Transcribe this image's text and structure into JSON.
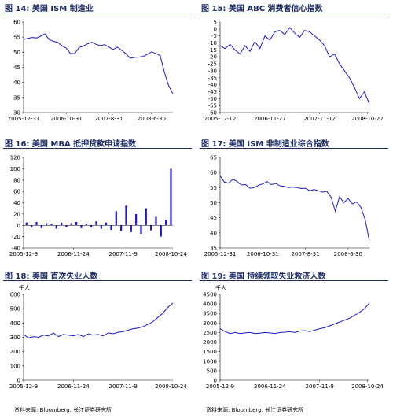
{
  "charts": [
    {
      "title_num": "图 14:",
      "title_text": "美国 ISM 制造业",
      "unit": "",
      "chart_data": {
        "type": "line",
        "x_ticks": [
          "2005-12-31",
          "2006-10-31",
          "2007-8-31",
          "2008-6-30"
        ],
        "y_ticks": [
          30,
          35,
          40,
          45,
          50,
          55,
          60
        ],
        "ylim": [
          30,
          60
        ],
        "xlim": [
          0,
          35
        ],
        "tick_positions": [
          0,
          10,
          20,
          30
        ],
        "series": [
          {
            "color": "#1a1acc",
            "x": [
              0,
              1,
              2,
              3,
              4,
              5,
              6,
              7,
              8,
              9,
              10,
              11,
              12,
              13,
              14,
              15,
              16,
              17,
              18,
              19,
              20,
              21,
              22,
              23,
              24,
              25,
              26,
              27,
              28,
              29,
              30,
              31,
              32,
              33,
              34,
              35
            ],
            "values": [
              54.2,
              54.6,
              54.9,
              54.7,
              55.3,
              56.0,
              54.2,
              53.6,
              53.3,
              52.1,
              51.4,
              49.5,
              49.6,
              51.6,
              52.0,
              52.8,
              53.3,
              52.6,
              52.2,
              52.5,
              51.7,
              50.9,
              51.7,
              50.6,
              49.5,
              48.0,
              48.3,
              48.4,
              48.6,
              49.3,
              50.1,
              49.6,
              48.9,
              43.4,
              38.9,
              36.2
            ]
          }
        ]
      }
    },
    {
      "title_num": "图 15:",
      "title_text": "美国 ABC 消费者信心指数",
      "unit": "",
      "chart_data": {
        "type": "line",
        "x_ticks": [
          "2005-12-12",
          "2006-11-27",
          "2007-11-12",
          "2008-10-27"
        ],
        "y_ticks": [
          -60,
          -55,
          -50,
          -45,
          -40,
          -35,
          -30,
          -25,
          -20,
          -15,
          -10,
          -5,
          0,
          5
        ],
        "ylim": [
          -60,
          5
        ],
        "xlim": [
          0,
          150
        ],
        "tick_positions": [
          0,
          50,
          100,
          148
        ],
        "series": [
          {
            "color": "#1a1acc",
            "x": [
              0,
              5,
              10,
              15,
              20,
              25,
              30,
              35,
              40,
              45,
              50,
              55,
              60,
              65,
              70,
              75,
              80,
              85,
              90,
              95,
              100,
              105,
              110,
              115,
              120,
              125,
              130,
              135,
              140,
              145,
              150
            ],
            "values": [
              -12,
              -14,
              -11,
              -15,
              -18,
              -12,
              -16,
              -9,
              -14,
              -5,
              -8,
              -2,
              -1,
              -4,
              1,
              -3,
              -6,
              -1,
              -2,
              -5,
              -8,
              -12,
              -20,
              -18,
              -25,
              -30,
              -35,
              -42,
              -50,
              -45,
              -54
            ]
          }
        ]
      }
    },
    {
      "title_num": "图 16:",
      "title_text": "美国 MBA 抵押贷款申请指数",
      "unit": "",
      "chart_data": {
        "type": "bar",
        "x_ticks": [
          "2005-12-9",
          "2006-11-24",
          "2007-11-9",
          "2008-10-24"
        ],
        "y_ticks": [
          -40,
          -20,
          0,
          20,
          40,
          60,
          80,
          100,
          120
        ],
        "ylim": [
          -40,
          120
        ],
        "xlim": [
          0,
          150
        ],
        "tick_positions": [
          0,
          50,
          100,
          148
        ],
        "series": [
          {
            "color": "#1a1acc",
            "x": [
              3,
              8,
              13,
              18,
              23,
              28,
              33,
              38,
              43,
              48,
              53,
              58,
              63,
              68,
              73,
              78,
              83,
              88,
              93,
              98,
              103,
              108,
              113,
              118,
              123,
              128,
              133,
              138,
              143,
              148
            ],
            "values": [
              5,
              -4,
              6,
              -5,
              4,
              3,
              -6,
              5,
              -3,
              4,
              6,
              -5,
              3,
              -4,
              7,
              -6,
              5,
              -8,
              25,
              -10,
              35,
              -12,
              20,
              -15,
              30,
              -9,
              15,
              -20,
              10,
              100
            ]
          }
        ]
      }
    },
    {
      "title_num": "图 17:",
      "title_text": "美国 ISM 非制造业综合指数",
      "unit": "",
      "chart_data": {
        "type": "line",
        "x_ticks": [
          "2005-12-31",
          "2006-10-31",
          "2007-8-31",
          "2008-6-30"
        ],
        "y_ticks": [
          35,
          40,
          45,
          50,
          55,
          60,
          65
        ],
        "ylim": [
          35,
          65
        ],
        "xlim": [
          0,
          35
        ],
        "tick_positions": [
          0,
          10,
          20,
          30
        ],
        "series": [
          {
            "color": "#1a1acc",
            "x": [
              0,
              1,
              2,
              3,
              4,
              5,
              6,
              7,
              8,
              9,
              10,
              11,
              12,
              13,
              14,
              15,
              16,
              17,
              18,
              19,
              20,
              21,
              22,
              23,
              24,
              25,
              26,
              27,
              28,
              29,
              30,
              31,
              32,
              33,
              34,
              35
            ],
            "values": [
              59.0,
              56.8,
              56.5,
              57.8,
              57.0,
              55.9,
              56.0,
              54.8,
              55.0,
              55.8,
              56.2,
              57.0,
              56.0,
              56.4,
              55.6,
              55.4,
              55.0,
              55.2,
              55.0,
              54.7,
              54.8,
              54.0,
              54.4,
              54.0,
              53.5,
              53.8,
              51.9,
              47.2,
              52.0,
              50.0,
              51.4,
              49.6,
              50.3,
              48.5,
              44.4,
              37.3
            ]
          }
        ]
      }
    },
    {
      "title_num": "图 18:",
      "title_text": "美国 首次失业人数",
      "unit": "千人",
      "chart_data": {
        "type": "line",
        "x_ticks": [
          "2005-12-9",
          "2006-11-24",
          "2007-11-9",
          "2008-10-24"
        ],
        "y_ticks": [
          0,
          100,
          200,
          300,
          400,
          500,
          600
        ],
        "ylim": [
          0,
          600
        ],
        "xlim": [
          0,
          150
        ],
        "tick_positions": [
          0,
          50,
          100,
          148
        ],
        "series": [
          {
            "color": "#1a1acc",
            "x": [
              0,
              5,
              10,
              15,
              20,
              25,
              30,
              35,
              40,
              45,
              50,
              55,
              60,
              65,
              70,
              75,
              80,
              85,
              90,
              95,
              100,
              105,
              110,
              115,
              120,
              125,
              130,
              135,
              140,
              145,
              150
            ],
            "values": [
              320,
              295,
              305,
              300,
              315,
              310,
              330,
              305,
              320,
              315,
              310,
              320,
              305,
              325,
              315,
              320,
              310,
              330,
              325,
              335,
              340,
              350,
              360,
              365,
              375,
              390,
              410,
              440,
              470,
              510,
              540
            ]
          }
        ]
      }
    },
    {
      "title_num": "图 19:",
      "title_text": "美国 持续领取失业救济人数",
      "unit": "千人",
      "chart_data": {
        "type": "line",
        "x_ticks": [
          "2005-12-9",
          "2006-11-24",
          "2007-11-9",
          "2008-10-24"
        ],
        "y_ticks": [
          0,
          500,
          1000,
          1500,
          2000,
          2500,
          3000,
          3500,
          4000,
          4500
        ],
        "ylim": [
          0,
          4500
        ],
        "xlim": [
          0,
          150
        ],
        "tick_positions": [
          0,
          50,
          100,
          148
        ],
        "series": [
          {
            "color": "#1a1acc",
            "x": [
              0,
              5,
              10,
              15,
              20,
              25,
              30,
              35,
              40,
              45,
              50,
              55,
              60,
              65,
              70,
              75,
              80,
              85,
              90,
              95,
              100,
              105,
              110,
              115,
              120,
              125,
              130,
              135,
              140,
              145,
              150
            ],
            "values": [
              2700,
              2550,
              2450,
              2500,
              2450,
              2480,
              2500,
              2450,
              2470,
              2500,
              2480,
              2450,
              2500,
              2520,
              2550,
              2500,
              2580,
              2600,
              2550,
              2620,
              2700,
              2750,
              2850,
              2950,
              3050,
              3150,
              3250,
              3400,
              3550,
              3750,
              4050
            ]
          }
        ]
      }
    }
  ],
  "footer": {
    "left": "资料来源: Bloomberg, 长江证券研究所",
    "right": "资料来源: Bloomberg, 长江证券研究所"
  }
}
